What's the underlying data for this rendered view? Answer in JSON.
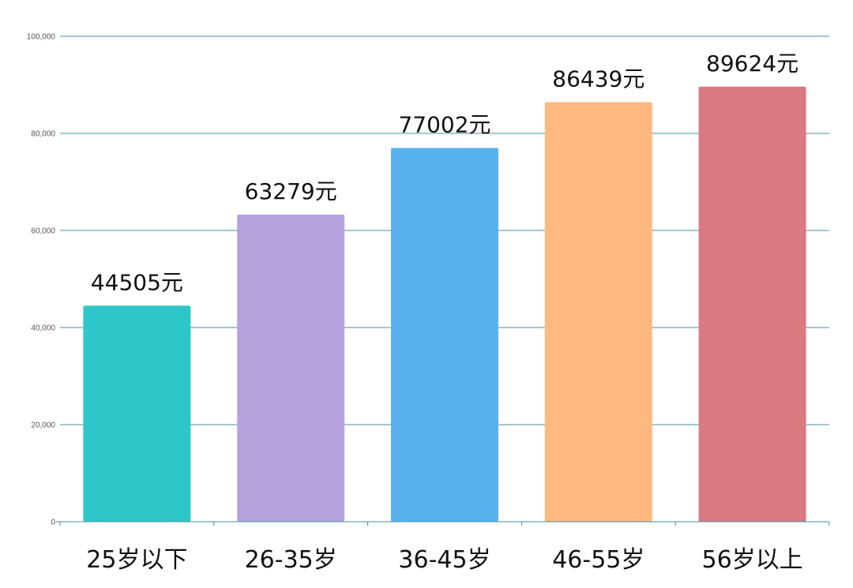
{
  "chart_data": {
    "type": "bar",
    "title": "",
    "xlabel": "",
    "ylabel": "",
    "categories": [
      "25岁以下",
      "26-35岁",
      "36-45岁",
      "46-55岁",
      "56岁以上"
    ],
    "values": [
      44505,
      63279,
      77002,
      86439,
      89624
    ],
    "value_labels": [
      "44505元",
      "63279元",
      "77002元",
      "86439元",
      "89624元"
    ],
    "colors": [
      "#2ec7c9",
      "#b6a2de",
      "#5ab1ef",
      "#ffb980",
      "#d87a80"
    ],
    "ylim": [
      0,
      100000
    ],
    "yticks": [
      0,
      20000,
      40000,
      60000,
      80000,
      100000
    ],
    "ytick_labels": [
      "0",
      "20,000",
      "40,000",
      "60,000",
      "80,000",
      "100,000"
    ],
    "grid": true,
    "grid_color": "#4a8fa0",
    "legend": "none"
  }
}
